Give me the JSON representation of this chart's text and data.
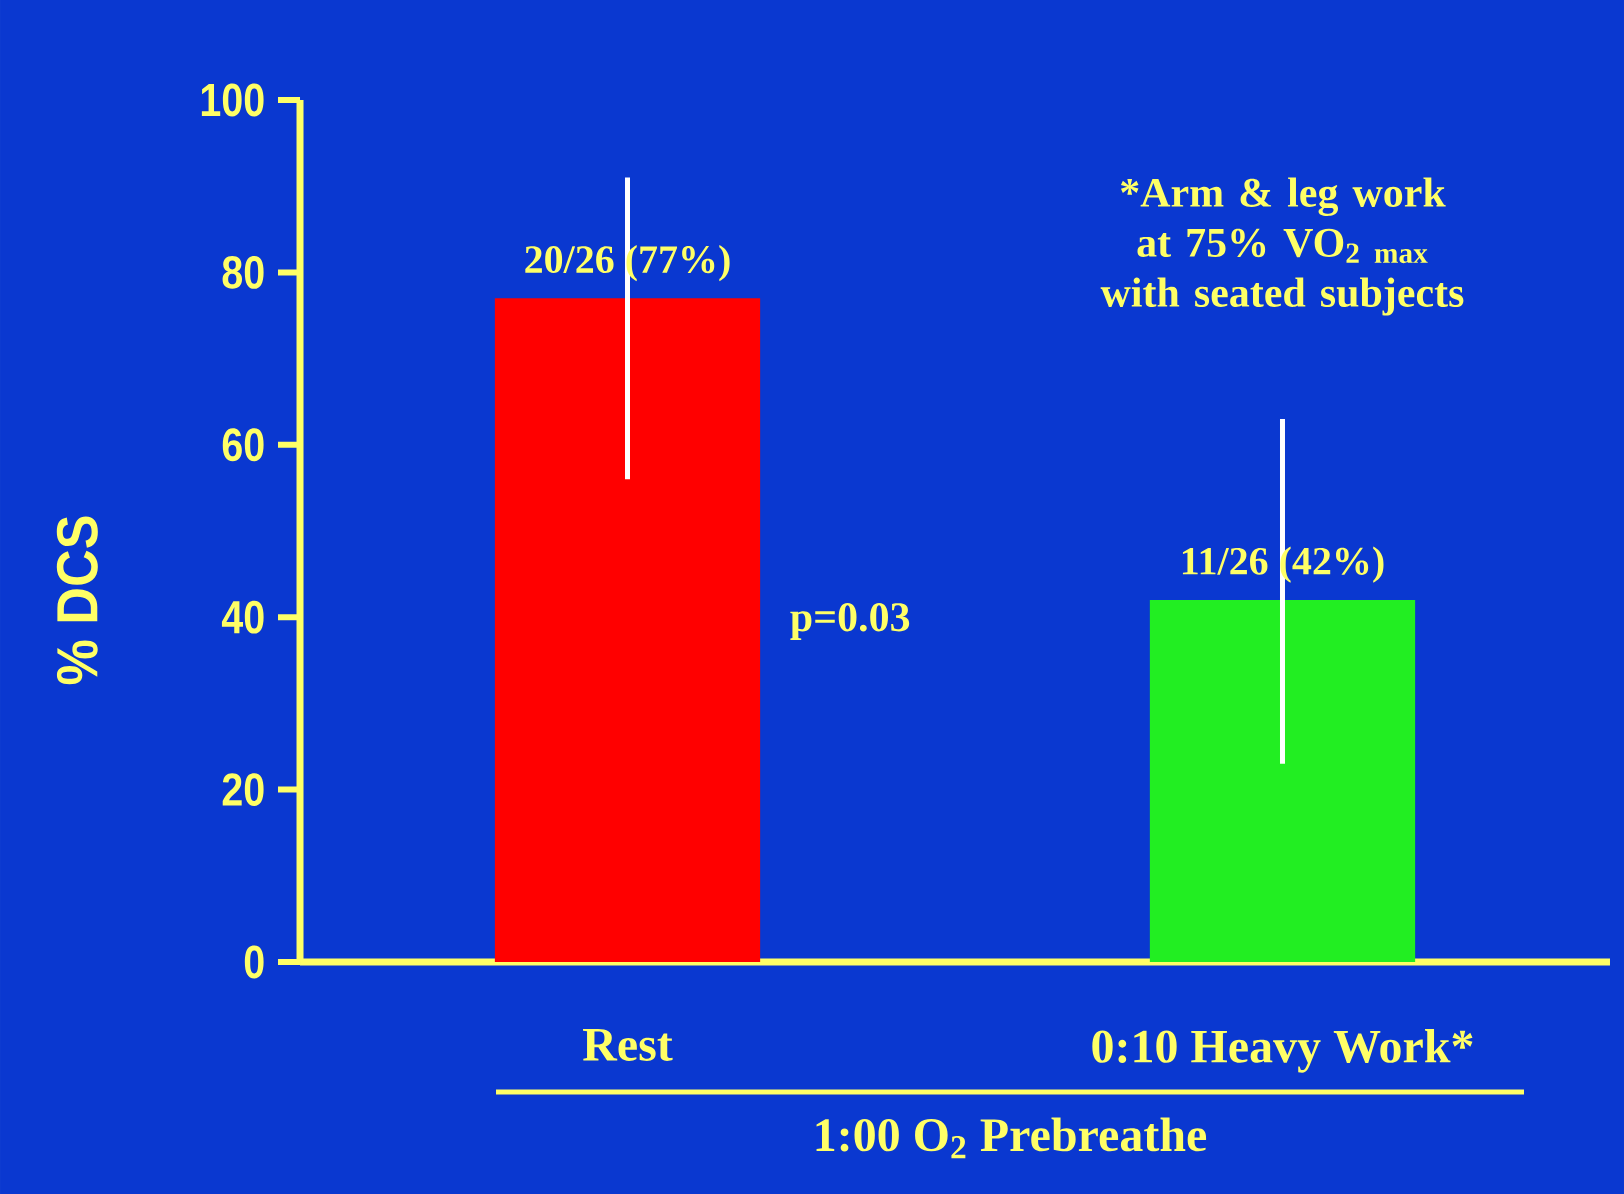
{
  "chart_data": {
    "type": "bar",
    "categories": [
      "Rest",
      "0:10 Heavy Work*"
    ],
    "values": [
      77,
      42
    ],
    "colors": [
      "#ff0000",
      "#22ee22"
    ],
    "errors": [
      [
        56,
        91
      ],
      [
        23,
        63
      ]
    ],
    "value_labels": [
      "20/26 (77%)",
      "11/26 (42%)"
    ],
    "ylabel": "% DCS",
    "xlabel": "1:00 O$_{2}$ Prebreathe",
    "ylim": [
      0,
      100
    ],
    "yticks": [
      0,
      20,
      40,
      60,
      80,
      100
    ],
    "annotations": [
      "p=0.03",
      "*Arm & leg work at 75% VO$_{2 max}$ with seated subjects"
    ],
    "grid": false
  }
}
